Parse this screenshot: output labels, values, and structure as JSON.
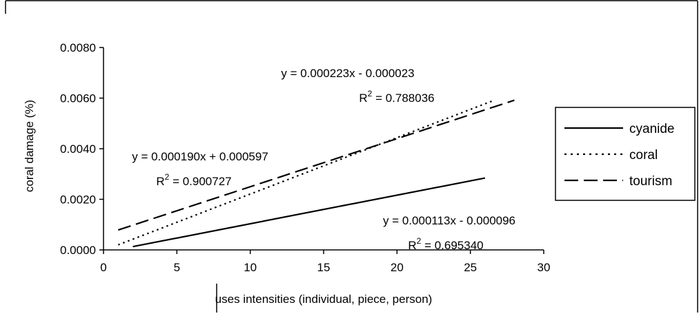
{
  "chart_data": {
    "type": "line",
    "xlabel": "uses intensities (individual, piece, person)",
    "ylabel": "coral damage (%)",
    "xlim": [
      0,
      30
    ],
    "ylim": [
      0,
      0.008
    ],
    "x_ticks": [
      "0",
      "5",
      "10",
      "15",
      "20",
      "25",
      "30"
    ],
    "y_ticks": [
      "0.0000",
      "0.0020",
      "0.0040",
      "0.0060",
      "0.0080"
    ],
    "grid": false,
    "legend_position": "right",
    "series": [
      {
        "name": "cyanide",
        "style": "solid",
        "x": [
          2,
          26
        ],
        "y": [
          0.00013,
          0.002842
        ],
        "equation": "y = 0.000113x - 0.000096",
        "r2_value": "= 0.695340"
      },
      {
        "name": "coral",
        "style": "dotted",
        "x": [
          1,
          26.5
        ],
        "y": [
          0.0002,
          0.005887
        ],
        "equation": "y = 0.000223x - 0.000023",
        "r2_value": "= 0.788036"
      },
      {
        "name": "tourism",
        "style": "dashed",
        "x": [
          1,
          28
        ],
        "y": [
          0.000787,
          0.005917
        ],
        "equation": "y = 0.000190x + 0.000597",
        "r2_value": "= 0.900727"
      }
    ],
    "r2_label": "R",
    "r2_superscript": "2"
  }
}
